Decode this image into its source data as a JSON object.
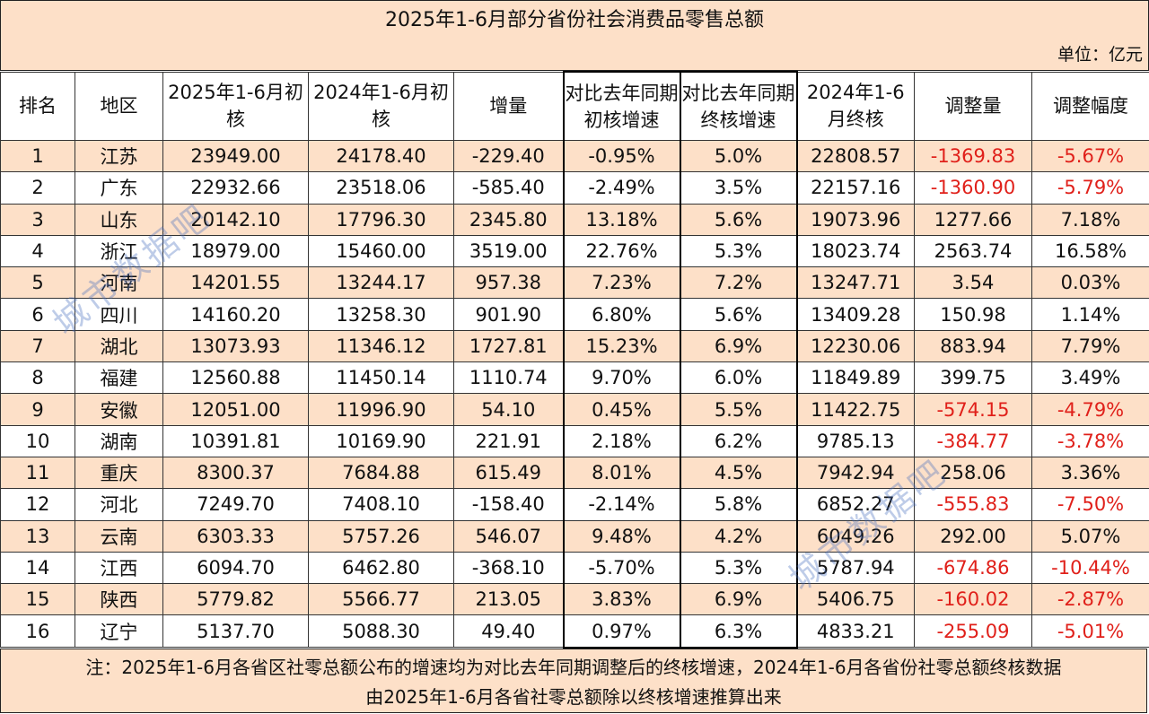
{
  "title": "2025年1-6月部分省份社会消费品零售总额",
  "unit": "单位：亿元",
  "headers": {
    "rank": "排名",
    "region": "地区",
    "h2025": "2025年1-6月初核",
    "h2024": "2024年1-6月初核",
    "increase": "增量",
    "growth_initial": "对比去年同期初核增速",
    "growth_final": "对比去年同期终核增速",
    "final2024": "2024年1-6月终核",
    "adjust": "调整量",
    "adjust_rate": "调整幅度"
  },
  "rows": [
    {
      "rank": "1",
      "region": "江苏",
      "v2025": "23949.00",
      "v2024": "24178.40",
      "inc": "-229.40",
      "gi": "-0.95%",
      "gf": "5.0%",
      "f2024": "22808.57",
      "adj": "-1369.83",
      "adjr": "-5.67%"
    },
    {
      "rank": "2",
      "region": "广东",
      "v2025": "22932.66",
      "v2024": "23518.06",
      "inc": "-585.40",
      "gi": "-2.49%",
      "gf": "3.5%",
      "f2024": "22157.16",
      "adj": "-1360.90",
      "adjr": "-5.79%"
    },
    {
      "rank": "3",
      "region": "山东",
      "v2025": "20142.10",
      "v2024": "17796.30",
      "inc": "2345.80",
      "gi": "13.18%",
      "gf": "5.6%",
      "f2024": "19073.96",
      "adj": "1277.66",
      "adjr": "7.18%"
    },
    {
      "rank": "4",
      "region": "浙江",
      "v2025": "18979.00",
      "v2024": "15460.00",
      "inc": "3519.00",
      "gi": "22.76%",
      "gf": "5.3%",
      "f2024": "18023.74",
      "adj": "2563.74",
      "adjr": "16.58%"
    },
    {
      "rank": "5",
      "region": "河南",
      "v2025": "14201.55",
      "v2024": "13244.17",
      "inc": "957.38",
      "gi": "7.23%",
      "gf": "7.2%",
      "f2024": "13247.71",
      "adj": "3.54",
      "adjr": "0.03%"
    },
    {
      "rank": "6",
      "region": "四川",
      "v2025": "14160.20",
      "v2024": "13258.30",
      "inc": "901.90",
      "gi": "6.80%",
      "gf": "5.6%",
      "f2024": "13409.28",
      "adj": "150.98",
      "adjr": "1.14%"
    },
    {
      "rank": "7",
      "region": "湖北",
      "v2025": "13073.93",
      "v2024": "11346.12",
      "inc": "1727.81",
      "gi": "15.23%",
      "gf": "6.9%",
      "f2024": "12230.06",
      "adj": "883.94",
      "adjr": "7.79%"
    },
    {
      "rank": "8",
      "region": "福建",
      "v2025": "12560.88",
      "v2024": "11450.14",
      "inc": "1110.74",
      "gi": "9.70%",
      "gf": "6.0%",
      "f2024": "11849.89",
      "adj": "399.75",
      "adjr": "3.49%"
    },
    {
      "rank": "9",
      "region": "安徽",
      "v2025": "12051.00",
      "v2024": "11996.90",
      "inc": "54.10",
      "gi": "0.45%",
      "gf": "5.5%",
      "f2024": "11422.75",
      "adj": "-574.15",
      "adjr": "-4.79%"
    },
    {
      "rank": "10",
      "region": "湖南",
      "v2025": "10391.81",
      "v2024": "10169.90",
      "inc": "221.91",
      "gi": "2.18%",
      "gf": "6.2%",
      "f2024": "9785.13",
      "adj": "-384.77",
      "adjr": "-3.78%"
    },
    {
      "rank": "11",
      "region": "重庆",
      "v2025": "8300.37",
      "v2024": "7684.88",
      "inc": "615.49",
      "gi": "8.01%",
      "gf": "4.5%",
      "f2024": "7942.94",
      "adj": "258.06",
      "adjr": "3.36%"
    },
    {
      "rank": "12",
      "region": "河北",
      "v2025": "7249.70",
      "v2024": "7408.10",
      "inc": "-158.40",
      "gi": "-2.14%",
      "gf": "5.8%",
      "f2024": "6852.27",
      "adj": "-555.83",
      "adjr": "-7.50%"
    },
    {
      "rank": "13",
      "region": "云南",
      "v2025": "6303.33",
      "v2024": "5757.26",
      "inc": "546.07",
      "gi": "9.48%",
      "gf": "4.2%",
      "f2024": "6049.26",
      "adj": "292.00",
      "adjr": "5.07%"
    },
    {
      "rank": "14",
      "region": "江西",
      "v2025": "6094.70",
      "v2024": "6462.80",
      "inc": "-368.10",
      "gi": "-5.70%",
      "gf": "5.3%",
      "f2024": "5787.94",
      "adj": "-674.86",
      "adjr": "-10.44%"
    },
    {
      "rank": "15",
      "region": "陕西",
      "v2025": "5779.82",
      "v2024": "5566.77",
      "inc": "213.05",
      "gi": "3.83%",
      "gf": "6.9%",
      "f2024": "5406.75",
      "adj": "-160.02",
      "adjr": "-2.87%"
    },
    {
      "rank": "16",
      "region": "辽宁",
      "v2025": "5137.70",
      "v2024": "5088.30",
      "inc": "49.40",
      "gi": "0.97%",
      "gf": "6.3%",
      "f2024": "4833.21",
      "adj": "-255.09",
      "adjr": "-5.01%"
    }
  ],
  "note": {
    "line1": "注：2025年1-6月各省区社零总额公布的增速均为对比去年同期调整后的终核增速，2024年1-6月各省份社零总额终核数据",
    "line2": "由2025年1-6月各省社零总额除以终核增速推算出来"
  },
  "watermark": "城市数据吧",
  "colors": {
    "band": "#fde0c8",
    "negative": "#e0201a",
    "watermark": "#466ebe"
  }
}
